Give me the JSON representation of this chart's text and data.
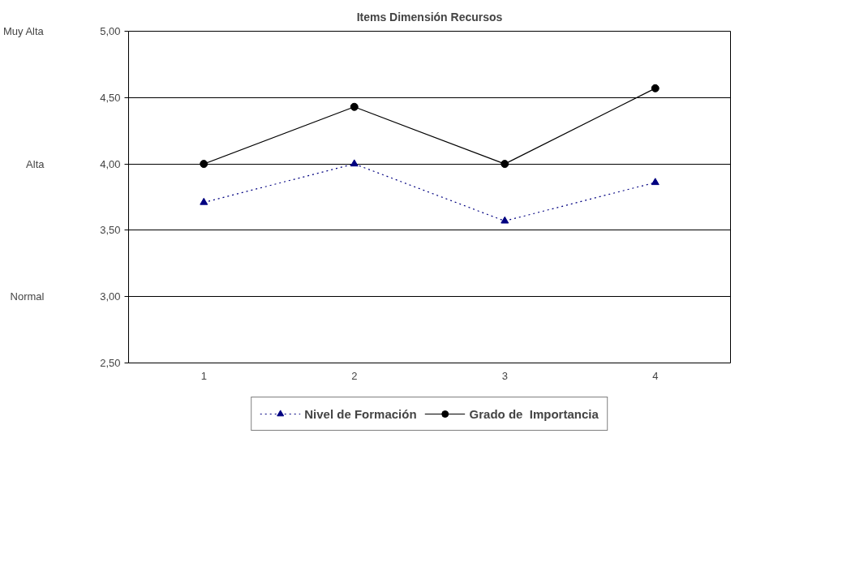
{
  "chart_data": {
    "type": "line",
    "title": "Items Dimensión Recursos",
    "categories": [
      "1",
      "2",
      "3",
      "4"
    ],
    "series": [
      {
        "name": "Nivel de Formación",
        "color": "#000080",
        "values": [
          3.71,
          4.0,
          3.57,
          3.86
        ],
        "marker": "triangle",
        "line_style": "dotted"
      },
      {
        "name": "Grado de  Importancia",
        "color": "#000000",
        "values": [
          4.0,
          4.43,
          4.0,
          4.57
        ],
        "marker": "circle",
        "line_style": "solid"
      }
    ],
    "ylim": [
      2.5,
      5.0
    ],
    "yticks": [
      {
        "value": 2.5,
        "label": "2,50"
      },
      {
        "value": 3.0,
        "label": "3,00"
      },
      {
        "value": 3.5,
        "label": "3,50"
      },
      {
        "value": 4.0,
        "label": "4,00"
      },
      {
        "value": 4.5,
        "label": "4,50"
      },
      {
        "value": 5.0,
        "label": "5,00"
      }
    ],
    "annotations": [
      "Muy Alta",
      "Alta",
      "Normal"
    ],
    "grid": "y",
    "legend": "bottom"
  }
}
